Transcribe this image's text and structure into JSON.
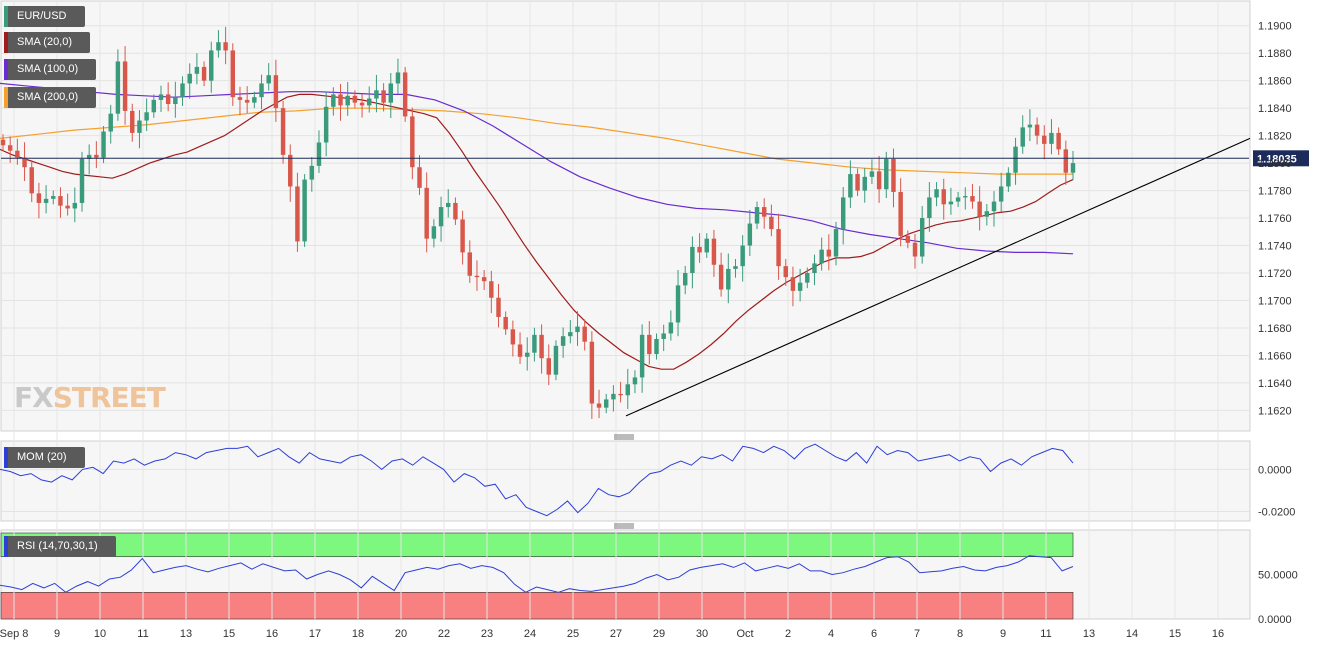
{
  "chart_data": [
    {
      "type": "candlestick",
      "name": "EUR/USD",
      "ylim": [
        1.1605,
        1.1918
      ],
      "y_ticks": [
        "1.1620",
        "1.1640",
        "1.1660",
        "1.1680",
        "1.1700",
        "1.1720",
        "1.1740",
        "1.1760",
        "1.1780",
        "1.1800",
        "1.1820",
        "1.1840",
        "1.1860",
        "1.1880",
        "1.1900"
      ],
      "x_labels": [
        "Sep 8",
        "9",
        "10",
        "11",
        "13",
        "15",
        "16",
        "17",
        "18",
        "20",
        "22",
        "23",
        "24",
        "25",
        "27",
        "29",
        "30",
        "Oct",
        "2",
        "4",
        "6",
        "7",
        "8",
        "9",
        "11",
        "13",
        "14",
        "15",
        "16"
      ],
      "grid": true,
      "current_price": "1.18035",
      "current_price_value": 1.18035,
      "colors": {
        "up": "#3a9a7c",
        "down": "#d9574a",
        "sma20": "#a01c1c",
        "sma100": "#6a2bd0",
        "sma200": "#f5a02c",
        "price_line": "#1c2b59",
        "trendline": "#000000"
      },
      "legend": [
        "SMA (20,0)",
        "SMA (100,0)",
        "SMA (200,0)"
      ],
      "series_close": [
        1.1813,
        1.1809,
        1.1804,
        1.1797,
        1.1778,
        1.1771,
        1.1774,
        1.1776,
        1.1769,
        1.1767,
        1.1771,
        1.1803,
        1.1806,
        1.1804,
        1.1823,
        1.1836,
        1.1874,
        1.1838,
        1.1822,
        1.1831,
        1.1837,
        1.1846,
        1.185,
        1.1843,
        1.1848,
        1.1858,
        1.1865,
        1.187,
        1.186,
        1.1882,
        1.1888,
        1.1882,
        1.1848,
        1.1846,
        1.1844,
        1.1848,
        1.1858,
        1.1864,
        1.184,
        1.1806,
        1.1783,
        1.1743,
        1.1788,
        1.1798,
        1.1815,
        1.1841,
        1.185,
        1.1842,
        1.1849,
        1.1844,
        1.1842,
        1.1847,
        1.1853,
        1.1844,
        1.1858,
        1.1866,
        1.1834,
        1.1797,
        1.1782,
        1.1745,
        1.1754,
        1.1768,
        1.1771,
        1.1759,
        1.1735,
        1.1718,
        1.1717,
        1.1714,
        1.1702,
        1.1688,
        1.1679,
        1.1668,
        1.1659,
        1.1662,
        1.1675,
        1.1658,
        1.1646,
        1.1667,
        1.1674,
        1.1677,
        1.1681,
        1.167,
        1.1625,
        1.1622,
        1.1628,
        1.1632,
        1.1631,
        1.1639,
        1.1644,
        1.1675,
        1.1661,
        1.1672,
        1.1676,
        1.1684,
        1.1711,
        1.172,
        1.1739,
        1.1735,
        1.1745,
        1.1726,
        1.1708,
        1.1723,
        1.1725,
        1.174,
        1.1756,
        1.1768,
        1.1761,
        1.1752,
        1.1725,
        1.1717,
        1.1707,
        1.1713,
        1.172,
        1.1727,
        1.1737,
        1.1732,
        1.1752,
        1.1775,
        1.1792,
        1.178,
        1.179,
        1.1794,
        1.1781,
        1.1803,
        1.1779,
        1.1747,
        1.1742,
        1.1732,
        1.176,
        1.1775,
        1.1781,
        1.177,
        1.1772,
        1.1775,
        1.1776,
        1.1772,
        1.1761,
        1.1765,
        1.1772,
        1.1783,
        1.1793,
        1.1812,
        1.1826,
        1.1828,
        1.182,
        1.1814,
        1.1822,
        1.181,
        1.1793,
        1.18
      ],
      "sma20": [
        1.181,
        1.1806,
        1.1803,
        1.18,
        1.1797,
        1.1794,
        1.1792,
        1.1791,
        1.179,
        1.1789,
        1.1792,
        1.1796,
        1.18,
        1.1803,
        1.1806,
        1.1808,
        1.1812,
        1.1816,
        1.182,
        1.1826,
        1.1832,
        1.1838,
        1.1843,
        1.1848,
        1.185,
        1.185,
        1.1849,
        1.1848,
        1.1847,
        1.1846,
        1.1844,
        1.1842,
        1.184,
        1.1838,
        1.1836,
        1.1833,
        1.1822,
        1.1809,
        1.1795,
        1.1782,
        1.1769,
        1.1755,
        1.1741,
        1.1728,
        1.1716,
        1.1704,
        1.1693,
        1.1684,
        1.1676,
        1.1669,
        1.1662,
        1.1657,
        1.1652,
        1.165,
        1.165,
        1.1655,
        1.1661,
        1.1668,
        1.1676,
        1.1685,
        1.1693,
        1.17,
        1.1707,
        1.1713,
        1.1718,
        1.1723,
        1.1728,
        1.1731,
        1.1731,
        1.1732,
        1.1735,
        1.174,
        1.1745,
        1.1749,
        1.1752,
        1.1755,
        1.1757,
        1.1758,
        1.176,
        1.1762,
        1.1764,
        1.1765,
        1.1768,
        1.1772,
        1.1778,
        1.1784,
        1.1788
      ],
      "sma20_start_index": 0,
      "sma100": [
        1.1858,
        1.1856,
        1.1854,
        1.1852,
        1.185,
        1.1849,
        1.1848,
        1.1849,
        1.185,
        1.1851,
        1.1852,
        1.1852,
        1.1851,
        1.185,
        1.185,
        1.1846,
        1.1838,
        1.1827,
        1.1814,
        1.1801,
        1.179,
        1.1782,
        1.1775,
        1.177,
        1.1767,
        1.1766,
        1.1764,
        1.1762,
        1.1758,
        1.1752,
        1.1748,
        1.1745,
        1.1742,
        1.1738,
        1.1736,
        1.1735,
        1.1735,
        1.1734
      ],
      "sma200": [
        1.1818,
        1.1821,
        1.1824,
        1.1826,
        1.1828,
        1.1831,
        1.1834,
        1.1837,
        1.1838,
        1.184,
        1.184,
        1.1839,
        1.1838,
        1.1836,
        1.1833,
        1.1829,
        1.1826,
        1.1822,
        1.1818,
        1.1813,
        1.1808,
        1.1803,
        1.18,
        1.1797,
        1.1795,
        1.1794,
        1.1793,
        1.1792,
        1.1792,
        1.1792
      ],
      "trendline": {
        "from": 1.1616,
        "to": 1.1818
      }
    },
    {
      "type": "line",
      "name": "MOM (20)",
      "ylim": [
        -0.0245,
        0.0135
      ],
      "y_ticks": [
        "-0.0200",
        "0.0000"
      ],
      "values": [
        0.0,
        -0.001,
        -0.003,
        -0.002,
        -0.005,
        -0.006,
        -0.003,
        -0.005,
        0.0,
        0.001,
        -0.002,
        0.004,
        0.003,
        0.005,
        0.002,
        0.004,
        0.005,
        0.008,
        0.007,
        0.005,
        0.008,
        0.009,
        0.01,
        0.01,
        0.011,
        0.006,
        0.008,
        0.01,
        0.006,
        0.003,
        0.008,
        0.005,
        0.004,
        0.003,
        0.006,
        0.007,
        0.004,
        0.0,
        0.004,
        0.005,
        0.002,
        0.006,
        0.003,
        0.0,
        -0.006,
        -0.002,
        -0.004,
        -0.008,
        -0.007,
        -0.014,
        -0.012,
        -0.018,
        -0.02,
        -0.022,
        -0.019,
        -0.015,
        -0.0205,
        -0.016,
        -0.009,
        -0.012,
        -0.013,
        -0.011,
        -0.006,
        -0.002,
        -0.001,
        0.002,
        0.004,
        0.002,
        0.006,
        0.005,
        0.007,
        0.004,
        0.011,
        0.01,
        0.008,
        0.011,
        0.009,
        0.005,
        0.01,
        0.012,
        0.009,
        0.006,
        0.004,
        0.008,
        0.003,
        0.011,
        0.007,
        0.009,
        0.008,
        0.004,
        0.005,
        0.006,
        0.007,
        0.004,
        0.006,
        0.005,
        -0.001,
        0.003,
        0.005,
        0.002,
        0.006,
        0.008,
        0.01,
        0.009,
        0.003
      ]
    },
    {
      "type": "line",
      "name": "RSI (14,70,30,1)",
      "ylim": [
        0,
        100
      ],
      "y_ticks": [
        "0.0000",
        "50.0000"
      ],
      "overbought": 70,
      "oversold": 30,
      "values": [
        38,
        36,
        33,
        40,
        35,
        40,
        30,
        37,
        42,
        37,
        45,
        47,
        55,
        68,
        52,
        55,
        58,
        60,
        56,
        53,
        57,
        60,
        63,
        56,
        62,
        58,
        54,
        55,
        45,
        50,
        54,
        50,
        44,
        35,
        48,
        40,
        32,
        52,
        55,
        58,
        56,
        60,
        62,
        57,
        60,
        58,
        52,
        39,
        30,
        36,
        33,
        30,
        34,
        32,
        31,
        33,
        35,
        37,
        40,
        46,
        50,
        44,
        47,
        55,
        58,
        60,
        62,
        58,
        63,
        54,
        57,
        60,
        57,
        62,
        54,
        54,
        50,
        52,
        56,
        59,
        64,
        69,
        70,
        64,
        52,
        53,
        54,
        57,
        59,
        55,
        54,
        58,
        60,
        64,
        71,
        70,
        69,
        54,
        59
      ]
    }
  ]
}
